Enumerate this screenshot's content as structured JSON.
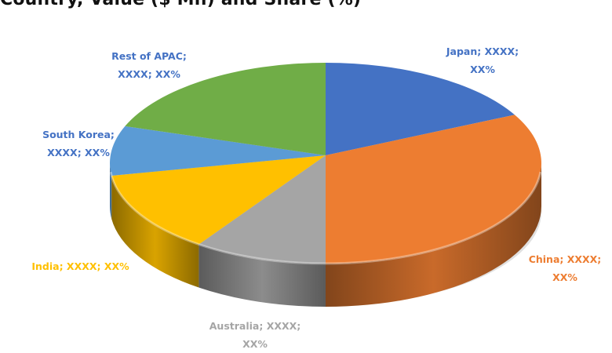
{
  "chart_data": {
    "type": "pie",
    "style": "3d",
    "title": "Country, Value ($ Mn) and Share (%)",
    "slices": [
      {
        "name": "Japan",
        "value_label": "XXXX",
        "share_label": "XX%",
        "label_line1": "Japan; XXXX;",
        "label_line2": "XX%",
        "estimated_share": 17,
        "color": "#4472C4",
        "label_color": "#4472C4"
      },
      {
        "name": "China",
        "value_label": "XXXX",
        "share_label": "XX%",
        "label_line1": "China; XXXX;",
        "label_line2": "XX%",
        "estimated_share": 33,
        "color": "#ED7D31",
        "label_color": "#ED7D31"
      },
      {
        "name": "Australia",
        "value_label": "XXXX",
        "share_label": "XX%",
        "label_line1": "Australia; XXXX;",
        "label_line2": "XX%",
        "estimated_share": 10,
        "color": "#A5A5A5",
        "label_color": "#A5A5A5"
      },
      {
        "name": "India",
        "value_label": "XXXX",
        "share_label": "XX%",
        "label_line1": "India; XXXX; XX%",
        "label_line2": "",
        "estimated_share": 13,
        "color": "#FFC000",
        "label_color": "#FFC000"
      },
      {
        "name": "South Korea",
        "value_label": "XXXX",
        "share_label": "XX%",
        "label_line1": "South Korea;",
        "label_line2": "XXXX; XX%",
        "estimated_share": 8,
        "color": "#5B9BD5",
        "label_color": "#4472C4"
      },
      {
        "name": "Rest of APAC",
        "value_label": "XXXX",
        "share_label": "XX%",
        "label_line1": "Rest of APAC;",
        "label_line2": "XXXX; XX%",
        "estimated_share": 19,
        "color": "#70AD47",
        "label_color": "#4472C4"
      }
    ],
    "legend": "none",
    "start_angle_deg": 0,
    "direction": "clockwise"
  }
}
